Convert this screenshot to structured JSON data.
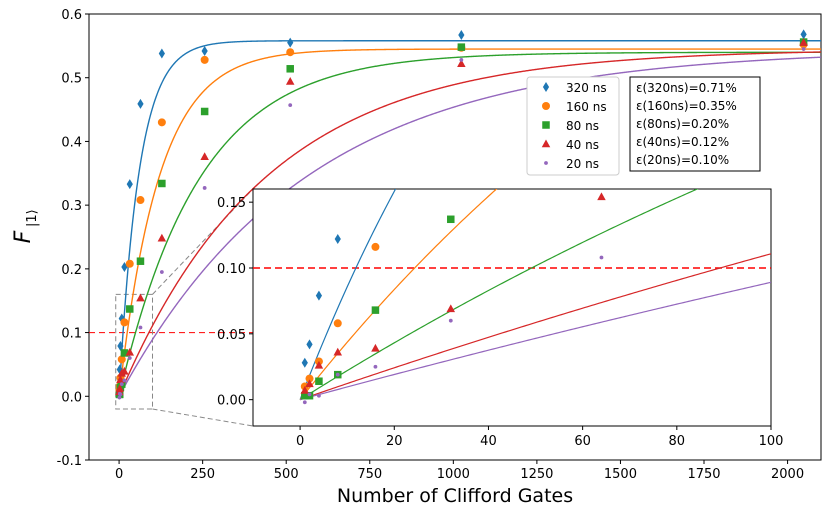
{
  "chart_data": {
    "type": "scatter",
    "main": {
      "xlabel": "Number of Clifford Gates",
      "ylabel": "F",
      "ylabel_subscript": "|1⟩",
      "xlim": [
        -90,
        2100
      ],
      "ylim": [
        -0.1,
        0.6
      ],
      "xticks": [
        0,
        250,
        500,
        750,
        1000,
        1250,
        1500,
        1750,
        2000
      ],
      "yticks": [
        -0.1,
        0.0,
        0.1,
        0.2,
        0.3,
        0.4,
        0.5,
        0.6
      ],
      "threshold": 0.1
    },
    "inset": {
      "xlim": [
        -10,
        100
      ],
      "ylim": [
        -0.02,
        0.16
      ],
      "xticks": [
        0,
        20,
        40,
        60,
        80,
        100
      ],
      "yticks": [
        0.0,
        0.05,
        0.1,
        0.15
      ],
      "threshold": 0.1,
      "zoom_box": {
        "x": [
          -10,
          100
        ],
        "y": [
          -0.02,
          0.16
        ]
      }
    },
    "series": [
      {
        "name": "320 ns",
        "color": "#1f77b4",
        "marker": "diamond",
        "plateau": 0.558,
        "scale": 60,
        "x": [
          1,
          2,
          4,
          8,
          16,
          32,
          64,
          128,
          256,
          512,
          1024,
          2048
        ],
        "y": [
          0.028,
          0.042,
          0.079,
          0.122,
          0.203,
          0.333,
          0.459,
          0.538,
          0.542,
          0.555,
          0.567,
          0.568
        ]
      },
      {
        "name": "160 ns",
        "color": "#ff7f0e",
        "marker": "circle",
        "plateau": 0.545,
        "scale": 120,
        "x": [
          1,
          2,
          4,
          8,
          16,
          32,
          64,
          128,
          256,
          512,
          1024,
          2048
        ],
        "y": [
          0.01,
          0.016,
          0.029,
          0.058,
          0.116,
          0.208,
          0.308,
          0.43,
          0.528,
          0.54,
          0.547,
          0.552
        ]
      },
      {
        "name": "80 ns",
        "color": "#2ca02c",
        "marker": "square",
        "plateau": 0.54,
        "scale": 240,
        "x": [
          1,
          2,
          4,
          8,
          16,
          32,
          64,
          128,
          256,
          512,
          1024,
          2048
        ],
        "y": [
          0.003,
          0.003,
          0.014,
          0.019,
          0.068,
          0.137,
          0.212,
          0.334,
          0.447,
          0.514,
          0.548,
          0.556
        ]
      },
      {
        "name": "40 ns",
        "color": "#d62728",
        "marker": "triangle",
        "plateau": 0.545,
        "scale": 440,
        "x": [
          1,
          2,
          4,
          8,
          16,
          32,
          64,
          128,
          256,
          512,
          1024,
          2048
        ],
        "y": [
          0.007,
          0.012,
          0.026,
          0.036,
          0.039,
          0.069,
          0.154,
          0.248,
          0.376,
          0.494,
          0.522,
          0.555
        ]
      },
      {
        "name": "20 ns",
        "color": "#9467bd",
        "marker": "dot",
        "plateau": 0.545,
        "scale": 560,
        "x": [
          1,
          2,
          4,
          8,
          16,
          32,
          64,
          128,
          256,
          512,
          1024,
          2048
        ],
        "y": [
          -0.002,
          0.004,
          0.003,
          0.019,
          0.025,
          0.06,
          0.108,
          0.195,
          0.327,
          0.457,
          0.528,
          0.545
        ]
      }
    ],
    "errors": [
      {
        "label": "ε(320ns)=0.71%"
      },
      {
        "label": "ε(160ns)=0.35%"
      },
      {
        "label": "ε(80ns)=0.20%"
      },
      {
        "label": "ε(40ns)=0.12%"
      },
      {
        "label": "ε(20ns)=0.10%"
      }
    ]
  }
}
